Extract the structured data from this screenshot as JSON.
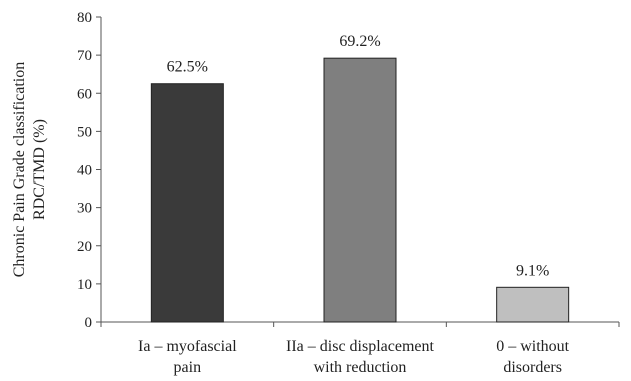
{
  "chart_data": {
    "type": "bar",
    "ylabel_lines": [
      "Chronic Pain Grade classification",
      "RDC/TMD (%)"
    ],
    "ylim": [
      0,
      80
    ],
    "yticks": [
      0,
      10,
      20,
      30,
      40,
      50,
      60,
      70,
      80
    ],
    "grid": false,
    "legend": "none",
    "categories": [
      {
        "lines": [
          "Ia – myofascial",
          "pain"
        ],
        "value": 62.5,
        "label": "62.5%",
        "color": "#3a3a3a"
      },
      {
        "lines": [
          "IIa – disc displacement",
          "with reduction"
        ],
        "value": 69.2,
        "label": "69.2%",
        "color": "#7f7f7f"
      },
      {
        "lines": [
          "0 – without",
          "disorders"
        ],
        "value": 9.1,
        "label": "9.1%",
        "color": "#bfbfbf"
      }
    ],
    "colors": {
      "axis": "#555555",
      "bar_border": "#222222"
    }
  }
}
